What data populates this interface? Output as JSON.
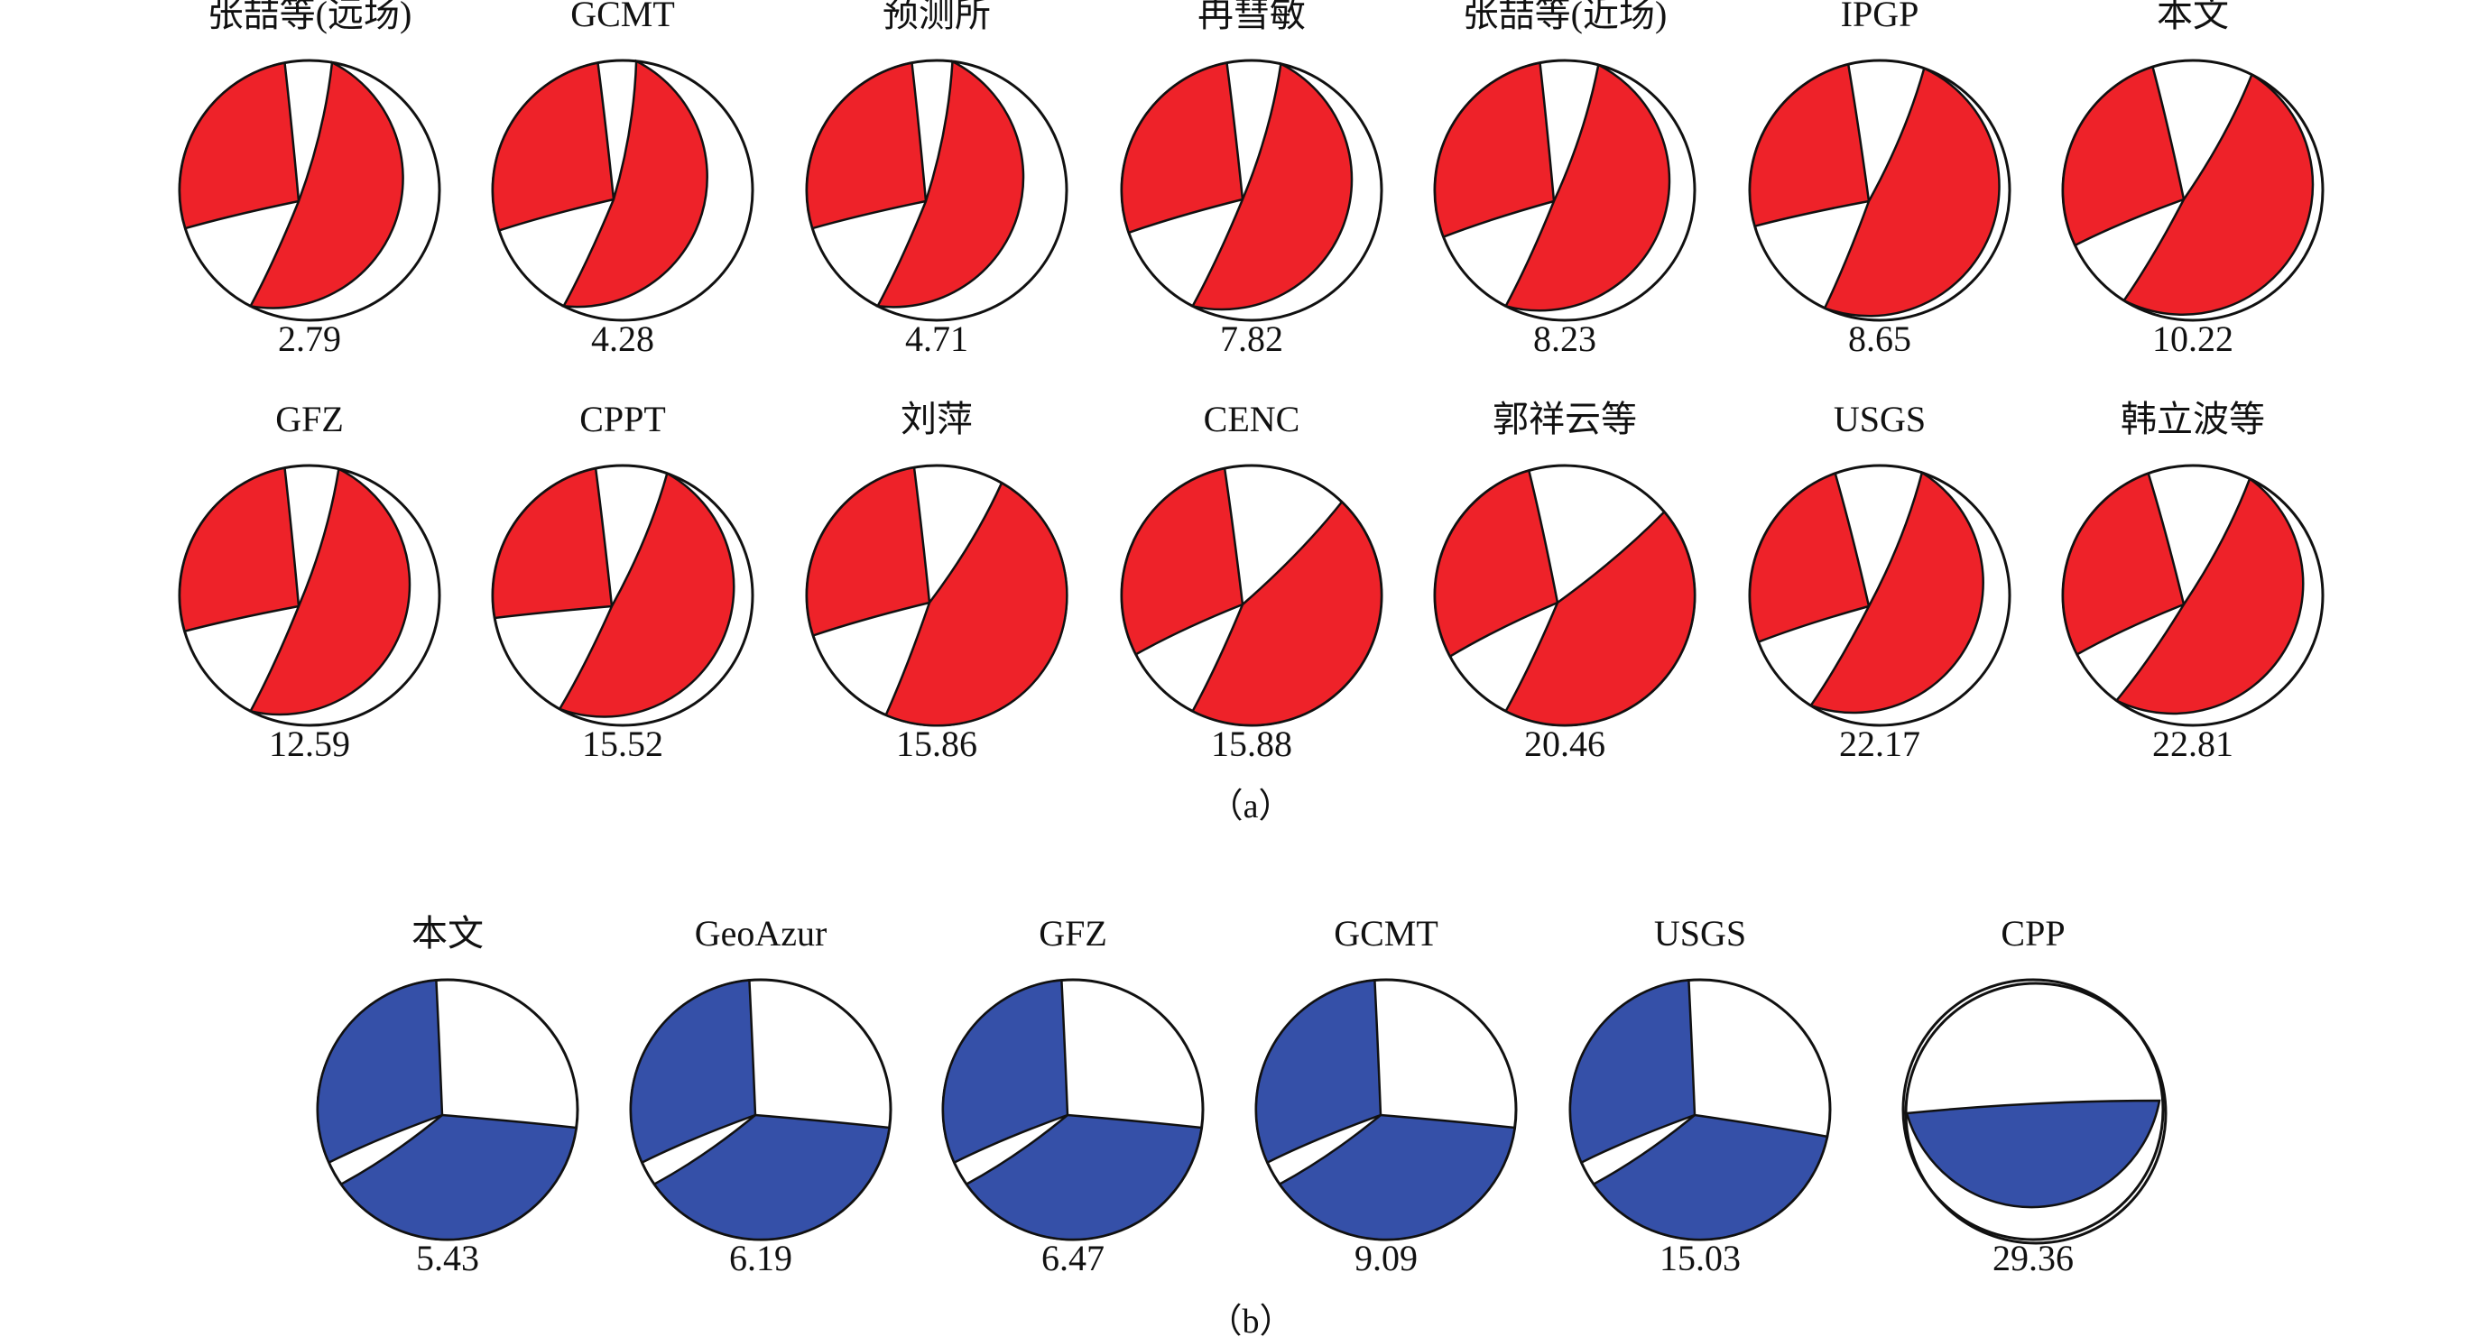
{
  "colors": {
    "panel_a_fill": "#EE2229",
    "panel_b_fill": "#3550A8",
    "outline": "#111111"
  },
  "panel_a": {
    "label": "（a）",
    "beachballs": [
      {
        "name": "张喆等(远场)",
        "value": "2.79"
      },
      {
        "name": "GCMT",
        "value": "4.28"
      },
      {
        "name": "预测所",
        "value": "4.71"
      },
      {
        "name": "冉彗敏",
        "value": "7.82"
      },
      {
        "name": "张喆等(近场)",
        "value": "8.23"
      },
      {
        "name": "IPGP",
        "value": "8.65"
      },
      {
        "name": "本文",
        "value": "10.22"
      },
      {
        "name": "GFZ",
        "value": "12.59"
      },
      {
        "name": "CPPT",
        "value": "15.52"
      },
      {
        "name": "刘萍",
        "value": "15.86"
      },
      {
        "name": "CENC",
        "value": "15.88"
      },
      {
        "name": "郭祥云等",
        "value": "20.46"
      },
      {
        "name": "USGS",
        "value": "22.17"
      },
      {
        "name": "韩立波等",
        "value": "22.81"
      }
    ]
  },
  "panel_b": {
    "label": "（b）",
    "beachballs": [
      {
        "name": "本文",
        "value": "5.43"
      },
      {
        "name": "GeoAzur",
        "value": "6.19"
      },
      {
        "name": "GFZ",
        "value": "6.47"
      },
      {
        "name": "GCMT",
        "value": "9.09"
      },
      {
        "name": "USGS",
        "value": "15.03"
      },
      {
        "name": "CPP",
        "value": "29.36"
      }
    ]
  }
}
